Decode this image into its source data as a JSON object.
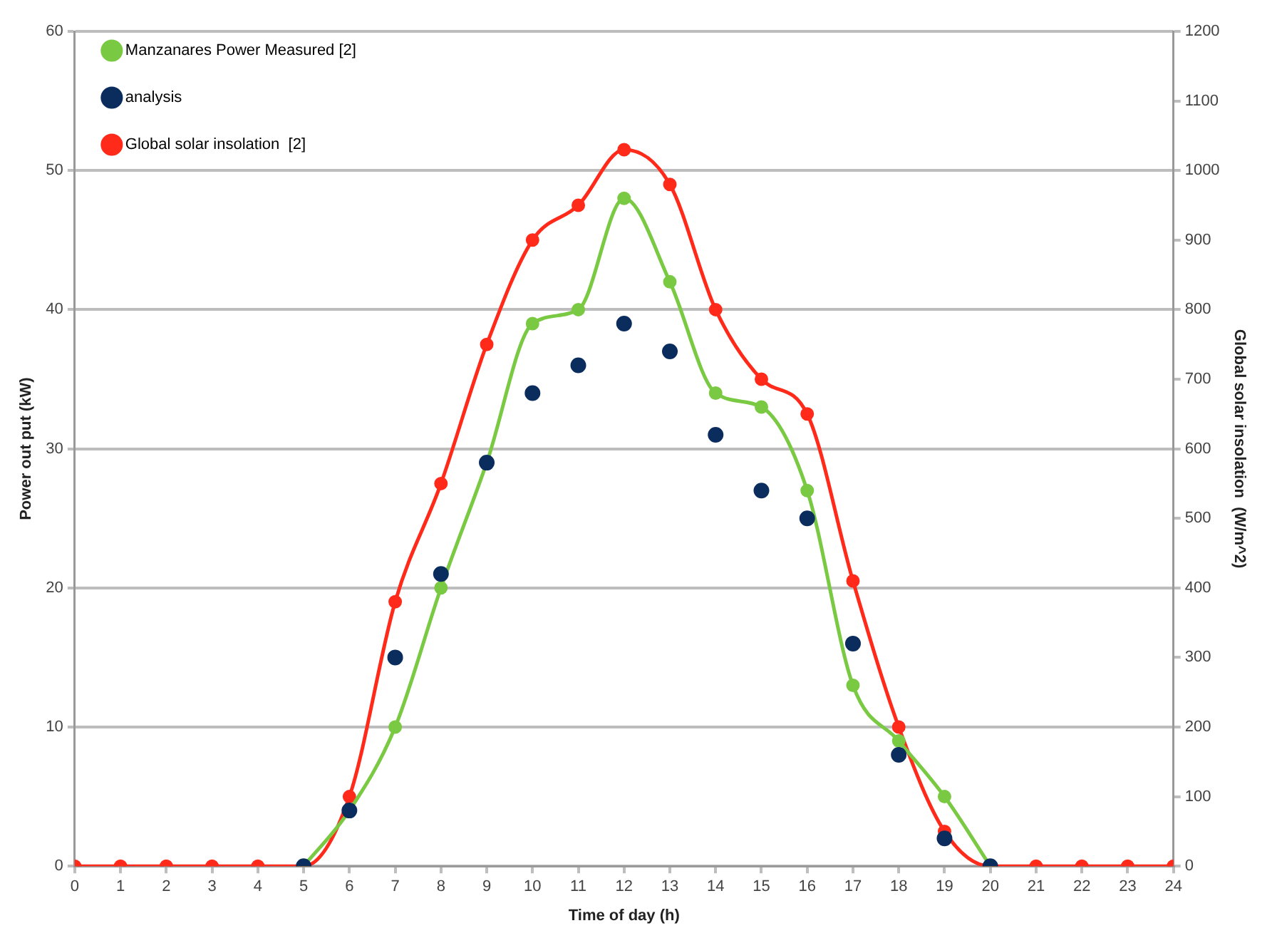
{
  "chart_data": {
    "type": "line",
    "xlabel": "Time of day (h)",
    "ylabel": "Power out put (kW)",
    "y2label": "Global solar insolation  (W/m^2)",
    "x": [
      0,
      1,
      2,
      3,
      4,
      5,
      6,
      7,
      8,
      9,
      10,
      11,
      12,
      13,
      14,
      15,
      16,
      17,
      18,
      19,
      20,
      21,
      22,
      23,
      24
    ],
    "series": [
      {
        "name": "Manzanares Power Measured [2]",
        "color": "#7ac943",
        "values": [
          null,
          null,
          null,
          null,
          null,
          0,
          4,
          10,
          20,
          29,
          39,
          40,
          48,
          42,
          34,
          33,
          27,
          13,
          9,
          5,
          0,
          null,
          null,
          null,
          null
        ]
      },
      {
        "name": "analysis",
        "type": "scatter",
        "color": "#0b2d5e",
        "values": [
          null,
          null,
          null,
          null,
          null,
          0,
          4,
          15,
          21,
          29,
          34,
          36,
          39,
          37,
          31,
          27,
          25,
          16,
          8,
          2,
          0,
          null,
          null,
          null,
          null
        ]
      },
      {
        "name": "Global solar insolation  [2]",
        "color": "#ff2a1a",
        "axis": "y2",
        "values": [
          0,
          0,
          0,
          0,
          0,
          0,
          100,
          380,
          550,
          750,
          900,
          950,
          1030,
          980,
          800,
          700,
          650,
          410,
          200,
          50,
          0,
          0,
          0,
          0,
          0
        ]
      }
    ],
    "xlim": [
      0,
      24
    ],
    "xticks": [
      0,
      1,
      2,
      3,
      4,
      5,
      6,
      7,
      8,
      9,
      10,
      11,
      12,
      13,
      14,
      15,
      16,
      17,
      18,
      19,
      20,
      21,
      22,
      23,
      24
    ],
    "ylim": [
      0,
      60
    ],
    "yticks": [
      0,
      10,
      20,
      30,
      40,
      50,
      60
    ],
    "y2lim": [
      0,
      1200
    ],
    "y2ticks": [
      0,
      100,
      200,
      300,
      400,
      500,
      600,
      700,
      800,
      900,
      1000,
      1100,
      1200
    ],
    "grid": "y",
    "legend": "top left",
    "marker": "circle"
  }
}
